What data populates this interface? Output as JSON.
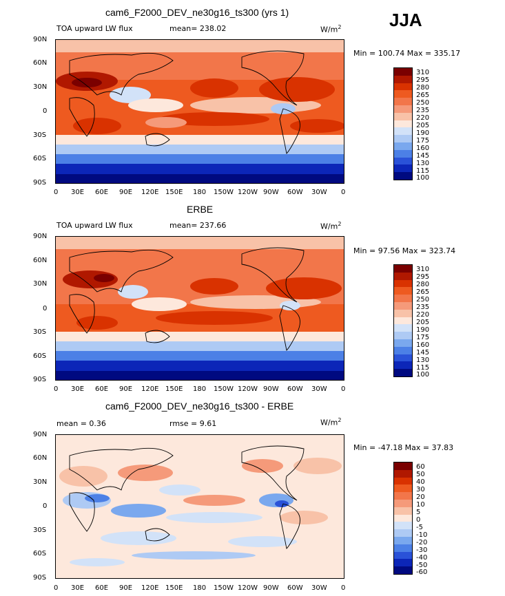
{
  "season": "JJA",
  "unit_base": "W/m",
  "unit_exp": "2",
  "xticks": [
    "0",
    "30E",
    "60E",
    "90E",
    "120E",
    "150E",
    "180",
    "150W",
    "120W",
    "90W",
    "60W",
    "30W",
    "0"
  ],
  "yticks": [
    "90N",
    "60N",
    "30N",
    "0",
    "30S",
    "60S",
    "90S"
  ],
  "colorbar_flux": [
    "310",
    "295",
    "280",
    "265",
    "250",
    "235",
    "220",
    "205",
    "190",
    "175",
    "160",
    "145",
    "130",
    "115",
    "100"
  ],
  "colorbar_diff": [
    "60",
    "50",
    "40",
    "30",
    "20",
    "10",
    "5",
    "0",
    "-5",
    "-10",
    "-20",
    "-30",
    "-40",
    "-50",
    "-60"
  ],
  "palette": [
    "#7a0000",
    "#b01800",
    "#d93200",
    "#ee5a20",
    "#f2764a",
    "#f59a7a",
    "#f8c2a8",
    "#fde8dc",
    "#d2e2f8",
    "#aecaf4",
    "#7aa8ee",
    "#4c80e6",
    "#2a52d8",
    "#0c26b8",
    "#000a80"
  ],
  "panels": [
    {
      "title": "cam6_F2000_DEV_ne30g16_ts300 (yrs 1)",
      "left_label": "TOA upward LW flux",
      "stat_label": "mean= 238.02",
      "minmax": "Min = 100.74 Max = 335.17"
    },
    {
      "title": "ERBE",
      "left_label": "TOA upward LW flux",
      "stat_label": "mean= 237.66",
      "minmax": "Min =  97.56 Max = 323.74"
    },
    {
      "title": "cam6_F2000_DEV_ne30g16_ts300 - ERBE",
      "left_label": "mean =    0.36",
      "stat_label": "rmse =    9.61",
      "minmax": "Min = -47.18 Max =  37.83"
    }
  ],
  "chart_data": [
    {
      "type": "heatmap",
      "title": "cam6_F2000_DEV_ne30g16_ts300 (yrs 1)",
      "subtitle": "TOA upward LW flux",
      "season": "JJA",
      "units": "W/m^2",
      "mean": 238.02,
      "min": 100.74,
      "max": 335.17,
      "xlim": [
        0,
        360
      ],
      "ylim": [
        -90,
        90
      ],
      "contour_levels": [
        100,
        115,
        130,
        145,
        160,
        175,
        190,
        205,
        220,
        235,
        250,
        265,
        280,
        295,
        310
      ]
    },
    {
      "type": "heatmap",
      "title": "ERBE",
      "subtitle": "TOA upward LW flux",
      "season": "JJA",
      "units": "W/m^2",
      "mean": 237.66,
      "min": 97.56,
      "max": 323.74,
      "xlim": [
        0,
        360
      ],
      "ylim": [
        -90,
        90
      ],
      "contour_levels": [
        100,
        115,
        130,
        145,
        160,
        175,
        190,
        205,
        220,
        235,
        250,
        265,
        280,
        295,
        310
      ]
    },
    {
      "type": "heatmap",
      "title": "cam6_F2000_DEV_ne30g16_ts300 - ERBE",
      "units": "W/m^2",
      "mean": 0.36,
      "rmse": 9.61,
      "min": -47.18,
      "max": 37.83,
      "xlim": [
        0,
        360
      ],
      "ylim": [
        -90,
        90
      ],
      "contour_levels": [
        -60,
        -50,
        -40,
        -30,
        -20,
        -10,
        -5,
        0,
        5,
        10,
        20,
        30,
        40,
        50,
        60
      ]
    }
  ]
}
